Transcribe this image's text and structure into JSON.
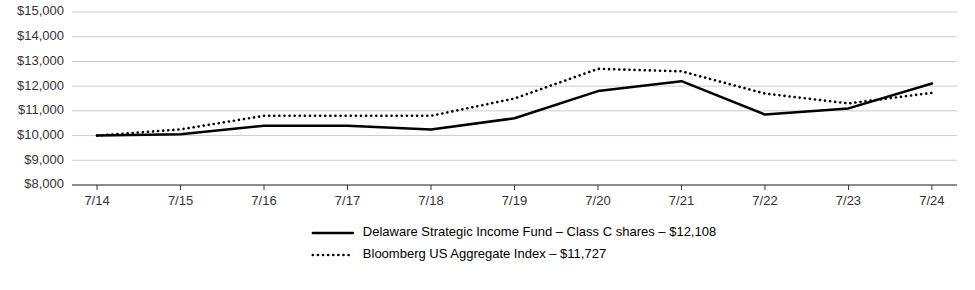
{
  "chart_data": {
    "type": "line",
    "categories": [
      "7/14",
      "7/15",
      "7/16",
      "7/17",
      "7/18",
      "7/19",
      "7/20",
      "7/21",
      "7/22",
      "7/23",
      "7/24"
    ],
    "series": [
      {
        "name": "Delaware Strategic Income Fund – Class C shares – $12,108",
        "color": "#000000",
        "line_style": "solid",
        "values": [
          10000,
          10050,
          10400,
          10400,
          10250,
          10700,
          11800,
          12200,
          10850,
          11100,
          12108
        ]
      },
      {
        "name": "Bloomberg US Aggregate Index – $11,727",
        "color": "#000000",
        "line_style": "dotted",
        "values": [
          10000,
          10250,
          10800,
          10800,
          10800,
          11500,
          12700,
          12600,
          11700,
          11300,
          11727
        ]
      }
    ],
    "ylim": [
      8000,
      15000
    ],
    "yticks": [
      {
        "value": 8000,
        "label": "$8,000"
      },
      {
        "value": 9000,
        "label": "$9,000"
      },
      {
        "value": 10000,
        "label": "$10,000"
      },
      {
        "value": 11000,
        "label": "$11,000"
      },
      {
        "value": 12000,
        "label": "$12,000"
      },
      {
        "value": 13000,
        "label": "$13,000"
      },
      {
        "value": 14000,
        "label": "$14,000"
      },
      {
        "value": 15000,
        "label": "$15,000"
      }
    ],
    "grid": true,
    "legend": "bottom"
  }
}
